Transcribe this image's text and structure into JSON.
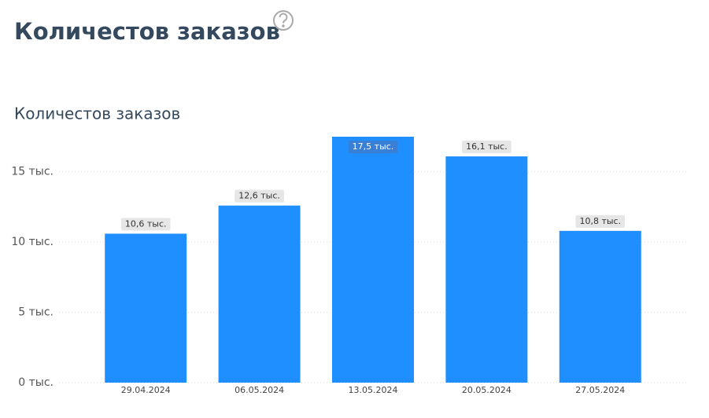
{
  "header": {
    "title": "Количестов заказов"
  },
  "chart_data": {
    "type": "bar",
    "title": "Количестов заказов",
    "categories": [
      "29.04.2024",
      "06.05.2024",
      "13.05.2024",
      "20.05.2024",
      "27.05.2024"
    ],
    "values": [
      10.6,
      12.6,
      17.5,
      16.1,
      10.8
    ],
    "value_labels": [
      "10,6 тыс.",
      "12,6 тыс.",
      "17,5 тыс.",
      "16,1 тыс.",
      "10,8 тыс."
    ],
    "color": "#1f8fff",
    "ylim": [
      0,
      17.5
    ],
    "yticks": [
      {
        "value": 0,
        "label": "0 тыс."
      },
      {
        "value": 5,
        "label": "5 тыс."
      },
      {
        "value": 10,
        "label": "10 тыс."
      },
      {
        "value": 15,
        "label": "15 тыс."
      }
    ],
    "grid": true
  }
}
